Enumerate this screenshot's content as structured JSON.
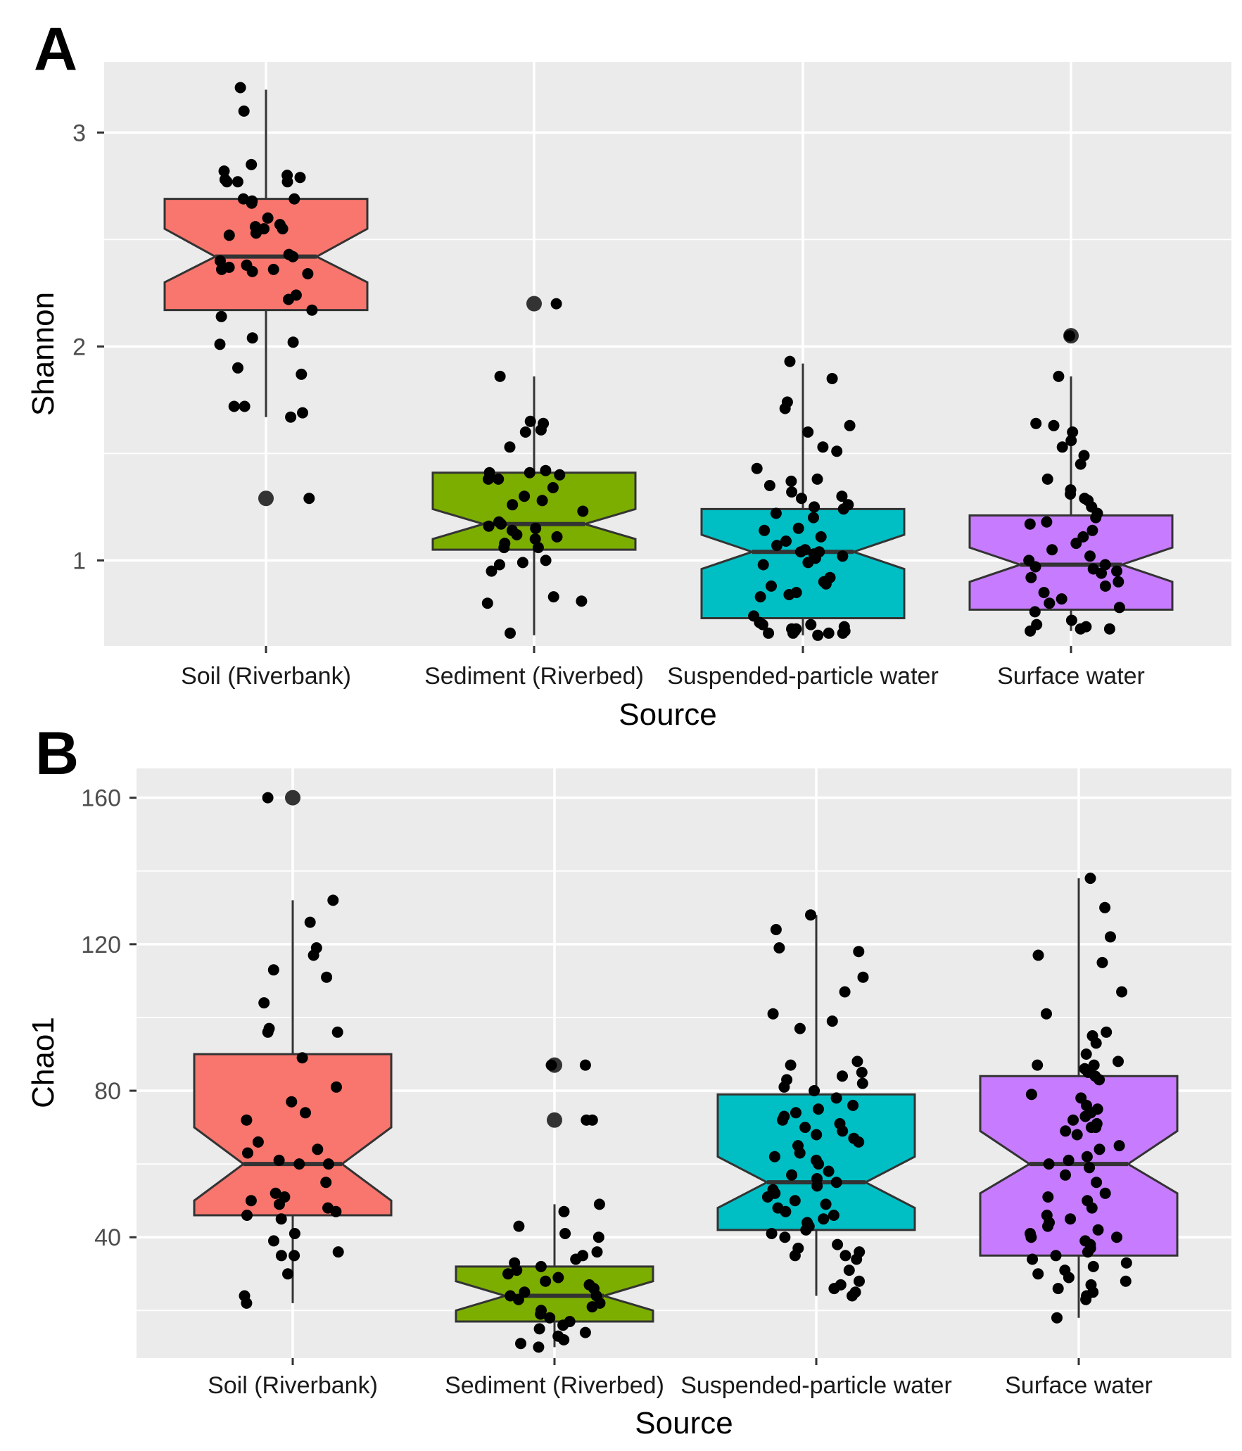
{
  "chart_data": [
    {
      "type": "boxplot",
      "panel": "A",
      "notched": true,
      "xlabel": "Source",
      "ylabel": "Shannon",
      "ylim": [
        0.6,
        3.33
      ],
      "yticks": [
        1,
        2,
        3
      ],
      "ytick_labels": [
        "1",
        "2",
        "3"
      ],
      "yminor": [
        1.5,
        2.5
      ],
      "categories": [
        "Soil (Riverbank)",
        "Sediment (Riverbed)",
        "Suspended-particle water",
        "Surface water"
      ],
      "colors": [
        "#F8766D",
        "#7CAE00",
        "#00BFC4",
        "#C77CFF"
      ],
      "series": [
        {
          "name": "Soil (Riverbank)",
          "q1": 2.17,
          "median": 2.42,
          "q3": 2.69,
          "notch_low": 2.3,
          "notch_high": 2.55,
          "whisker_low": 1.67,
          "whisker_high": 3.2,
          "outliers": [
            1.29
          ],
          "points": [
            3.21,
            3.1,
            2.85,
            2.82,
            2.8,
            2.79,
            2.78,
            2.77,
            2.77,
            2.77,
            2.69,
            2.69,
            2.68,
            2.67,
            2.6,
            2.57,
            2.56,
            2.55,
            2.55,
            2.53,
            2.52,
            2.43,
            2.42,
            2.4,
            2.38,
            2.37,
            2.36,
            2.36,
            2.35,
            2.34,
            2.24,
            2.22,
            2.17,
            2.14,
            2.04,
            2.02,
            2.01,
            1.9,
            1.87,
            1.72,
            1.72,
            1.69,
            1.67,
            1.29
          ]
        },
        {
          "name": "Sediment (Riverbed)",
          "q1": 1.05,
          "median": 1.17,
          "q3": 1.41,
          "notch_low": 1.1,
          "notch_high": 1.24,
          "whisker_low": 0.65,
          "whisker_high": 1.86,
          "outliers": [
            2.2
          ],
          "points": [
            2.2,
            1.86,
            1.65,
            1.64,
            1.61,
            1.6,
            1.53,
            1.42,
            1.41,
            1.41,
            1.4,
            1.38,
            1.38,
            1.34,
            1.3,
            1.28,
            1.26,
            1.23,
            1.18,
            1.17,
            1.16,
            1.15,
            1.14,
            1.12,
            1.11,
            1.1,
            1.08,
            1.06,
            1.06,
            1.0,
            0.99,
            0.98,
            0.95,
            0.83,
            0.81,
            0.8,
            0.66
          ]
        },
        {
          "name": "Suspended-particle water",
          "q1": 0.73,
          "median": 1.04,
          "q3": 1.24,
          "notch_low": 0.96,
          "notch_high": 1.12,
          "whisker_low": 0.65,
          "whisker_high": 1.92,
          "outliers": [],
          "points": [
            1.93,
            1.85,
            1.74,
            1.71,
            1.63,
            1.6,
            1.53,
            1.51,
            1.43,
            1.38,
            1.37,
            1.35,
            1.32,
            1.3,
            1.29,
            1.26,
            1.25,
            1.24,
            1.22,
            1.2,
            1.15,
            1.14,
            1.11,
            1.09,
            1.07,
            1.05,
            1.04,
            1.04,
            1.03,
            1.02,
            1.01,
            0.99,
            0.98,
            0.92,
            0.9,
            0.89,
            0.88,
            0.85,
            0.84,
            0.83,
            0.74,
            0.71,
            0.7,
            0.7,
            0.69,
            0.68,
            0.68,
            0.67,
            0.67,
            0.66,
            0.66,
            0.66,
            0.66,
            0.65
          ]
        },
        {
          "name": "Surface water",
          "q1": 0.77,
          "median": 0.98,
          "q3": 1.21,
          "notch_low": 0.9,
          "notch_high": 1.06,
          "whisker_low": 0.67,
          "whisker_high": 1.86,
          "outliers": [
            2.05
          ],
          "points": [
            2.05,
            1.86,
            1.64,
            1.63,
            1.6,
            1.56,
            1.53,
            1.49,
            1.45,
            1.38,
            1.33,
            1.31,
            1.29,
            1.28,
            1.25,
            1.22,
            1.2,
            1.18,
            1.17,
            1.14,
            1.11,
            1.08,
            1.05,
            1.02,
            1.0,
            0.98,
            0.97,
            0.96,
            0.95,
            0.94,
            0.92,
            0.9,
            0.88,
            0.85,
            0.82,
            0.8,
            0.78,
            0.76,
            0.72,
            0.7,
            0.69,
            0.68,
            0.68,
            0.67
          ]
        }
      ]
    },
    {
      "type": "boxplot",
      "panel": "B",
      "notched": true,
      "xlabel": "Source",
      "ylabel": "Chao1",
      "ylim": [
        7,
        168
      ],
      "yticks": [
        40,
        80,
        120,
        160
      ],
      "ytick_labels": [
        "40",
        "80",
        "120",
        "160"
      ],
      "yminor": [
        20,
        60,
        100,
        140
      ],
      "categories": [
        "Soil (Riverbank)",
        "Sediment (Riverbed)",
        "Suspended-particle water",
        "Surface water"
      ],
      "colors": [
        "#F8766D",
        "#7CAE00",
        "#00BFC4",
        "#C77CFF"
      ],
      "series": [
        {
          "name": "Soil (Riverbank)",
          "q1": 46,
          "median": 60,
          "q3": 90,
          "notch_low": 50,
          "notch_high": 70,
          "whisker_low": 22,
          "whisker_high": 132,
          "outliers": [
            160
          ],
          "points": [
            160,
            132,
            126,
            119,
            117,
            113,
            111,
            104,
            97,
            96,
            96,
            89,
            81,
            77,
            74,
            72,
            66,
            64,
            63,
            61,
            60,
            60,
            55,
            52,
            51,
            50,
            49,
            48,
            47,
            46,
            45,
            41,
            39,
            36,
            35,
            35,
            30,
            24,
            22
          ]
        },
        {
          "name": "Sediment (Riverbed)",
          "q1": 17,
          "median": 24,
          "q3": 32,
          "notch_low": 20,
          "notch_high": 28,
          "whisker_low": 10,
          "whisker_high": 49,
          "outliers": [
            87,
            72
          ],
          "points": [
            87,
            87,
            72,
            72,
            49,
            47,
            43,
            41,
            40,
            36,
            35,
            34,
            33,
            32,
            31,
            30,
            29,
            28,
            27,
            26,
            25,
            24,
            24,
            23,
            22,
            21,
            20,
            19,
            18,
            17,
            16,
            15,
            14,
            13,
            12,
            11,
            10
          ]
        },
        {
          "name": "Suspended-particle water",
          "q1": 42,
          "median": 55,
          "q3": 79,
          "notch_low": 48,
          "notch_high": 62,
          "whisker_low": 24,
          "whisker_high": 128,
          "outliers": [],
          "points": [
            128,
            124,
            119,
            118,
            111,
            107,
            101,
            99,
            97,
            88,
            87,
            85,
            84,
            83,
            82,
            81,
            80,
            78,
            76,
            75,
            74,
            73,
            72,
            71,
            70,
            69,
            68,
            67,
            66,
            65,
            63,
            62,
            61,
            60,
            58,
            57,
            56,
            55,
            54,
            53,
            52,
            51,
            50,
            49,
            48,
            47,
            46,
            45,
            44,
            43,
            42,
            41,
            40,
            38,
            37,
            36,
            35,
            35,
            34,
            31,
            28,
            27,
            26,
            25,
            24
          ]
        },
        {
          "name": "Surface water",
          "q1": 35,
          "median": 60,
          "q3": 84,
          "notch_low": 52,
          "notch_high": 69,
          "whisker_low": 18,
          "whisker_high": 138,
          "outliers": [],
          "points": [
            138,
            130,
            122,
            117,
            115,
            107,
            101,
            96,
            95,
            93,
            90,
            88,
            87,
            87,
            86,
            85,
            84,
            83,
            79,
            78,
            76,
            75,
            74,
            73,
            72,
            71,
            70,
            70,
            69,
            68,
            65,
            64,
            62,
            61,
            60,
            59,
            57,
            55,
            52,
            51,
            50,
            48,
            46,
            45,
            44,
            43,
            42,
            41,
            40,
            40,
            39,
            38,
            37,
            36,
            35,
            34,
            33,
            32,
            31,
            30,
            29,
            28,
            27,
            26,
            25,
            24,
            23,
            18
          ]
        }
      ]
    }
  ]
}
